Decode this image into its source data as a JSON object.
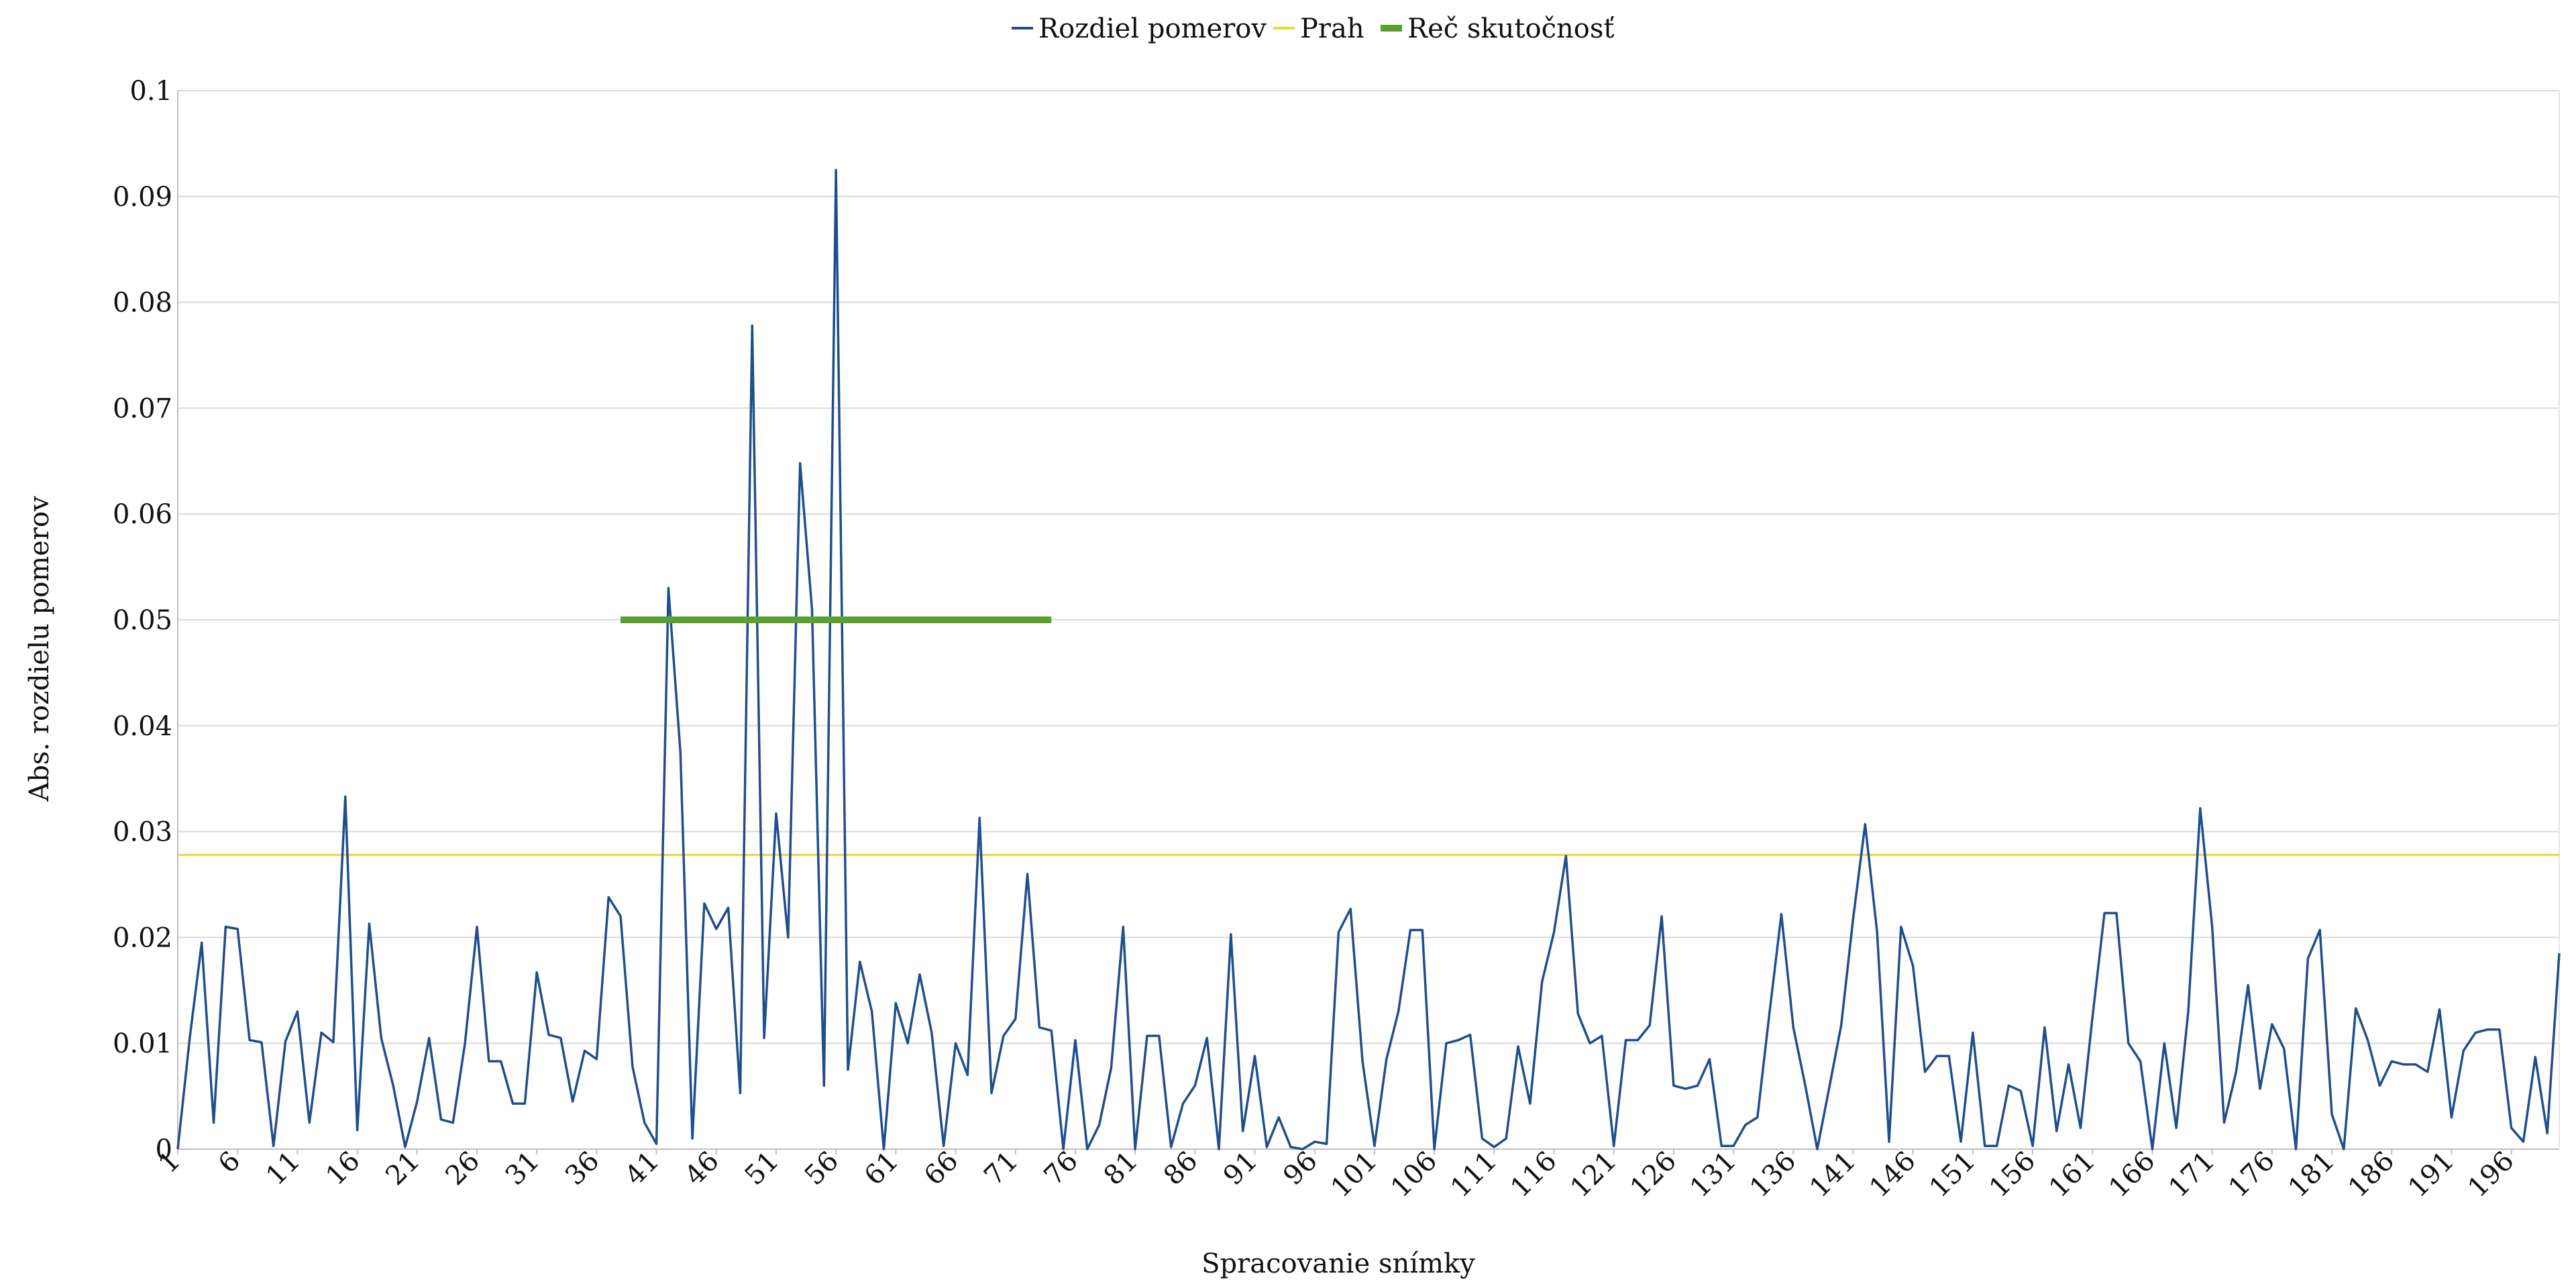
{
  "chart_data": {
    "type": "line",
    "title": "",
    "xlabel": "Spracovanie snímky",
    "ylabel": "Abs. rozdielu pomerov",
    "xlim": [
      1,
      200
    ],
    "ylim": [
      0,
      0.1
    ],
    "y_ticks": [
      0,
      0.01,
      0.02,
      0.03,
      0.04,
      0.05,
      0.06,
      0.07,
      0.08,
      0.09,
      0.1
    ],
    "y_tick_labels": [
      "0",
      "0.01",
      "0.02",
      "0.03",
      "0.04",
      "0.05",
      "0.06",
      "0.07",
      "0.08",
      "0.09",
      "0.1"
    ],
    "x_ticks": [
      1,
      6,
      11,
      16,
      21,
      26,
      31,
      36,
      41,
      46,
      51,
      56,
      61,
      66,
      71,
      76,
      81,
      86,
      91,
      96,
      101,
      106,
      111,
      116,
      121,
      126,
      131,
      136,
      141,
      146,
      151,
      156,
      161,
      166,
      171,
      176,
      181,
      186,
      191,
      196
    ],
    "x_tick_labels": [
      "1",
      "6",
      "11",
      "16",
      "21",
      "26",
      "31",
      "36",
      "41",
      "46",
      "51",
      "56",
      "61",
      "66",
      "71",
      "76",
      "81",
      "86",
      "91",
      "96",
      "101",
      "106",
      "111",
      "116",
      "121",
      "126",
      "131",
      "136",
      "141",
      "146",
      "151",
      "156",
      "161",
      "166",
      "171",
      "176",
      "181",
      "186",
      "191",
      "196"
    ],
    "grid": true,
    "legend_position": "top-center",
    "colors": {
      "series": "#1f4e8c",
      "threshold": "#f2d13f",
      "ground_truth": "#5aa02c",
      "grid": "#d9d9d9",
      "axis": "#bfbfbf"
    },
    "series": [
      {
        "name": "Rozdiel pomerov",
        "x": [
          1,
          2,
          3,
          4,
          5,
          6,
          7,
          8,
          9,
          10,
          11,
          12,
          13,
          14,
          15,
          16,
          17,
          18,
          19,
          20,
          21,
          22,
          23,
          24,
          25,
          26,
          27,
          28,
          29,
          30,
          31,
          32,
          33,
          34,
          35,
          36,
          37,
          38,
          39,
          40,
          41,
          42,
          43,
          44,
          45,
          46,
          47,
          48,
          49,
          50,
          51,
          52,
          53,
          54,
          55,
          56,
          57,
          58,
          59,
          60,
          61,
          62,
          63,
          64,
          65,
          66,
          67,
          68,
          69,
          70,
          71,
          72,
          73,
          74,
          75,
          76,
          77,
          78,
          79,
          80,
          81,
          82,
          83,
          84,
          85,
          86,
          87,
          88,
          89,
          90,
          91,
          92,
          93,
          94,
          95,
          96,
          97,
          98,
          99,
          100,
          101,
          102,
          103,
          104,
          105,
          106,
          107,
          108,
          109,
          110,
          111,
          112,
          113,
          114,
          115,
          116,
          117,
          118,
          119,
          120,
          121,
          122,
          123,
          124,
          125,
          126,
          127,
          128,
          129,
          130,
          131,
          132,
          133,
          134,
          135,
          136,
          137,
          138,
          139,
          140,
          141,
          142,
          143,
          144,
          145,
          146,
          147,
          148,
          149,
          150,
          151,
          152,
          153,
          154,
          155,
          156,
          157,
          158,
          159,
          160,
          161,
          162,
          163,
          164,
          165,
          166,
          167,
          168,
          169,
          170,
          171,
          172,
          173,
          174,
          175,
          176,
          177,
          178,
          179,
          180,
          181,
          182,
          183,
          184,
          185,
          186,
          187,
          188,
          189,
          190,
          191,
          192,
          193,
          194,
          195,
          196,
          197,
          198,
          199,
          200
        ],
        "values": [
          0.0,
          0.0105,
          0.0195,
          0.0025,
          0.021,
          0.0208,
          0.0103,
          0.0101,
          0.0003,
          0.0102,
          0.013,
          0.0025,
          0.011,
          0.0101,
          0.0333,
          0.0018,
          0.0213,
          0.0105,
          0.006,
          0.0002,
          0.0045,
          0.0105,
          0.0028,
          0.0025,
          0.01,
          0.021,
          0.0083,
          0.0083,
          0.0043,
          0.0043,
          0.0167,
          0.0108,
          0.0105,
          0.0045,
          0.0093,
          0.0085,
          0.0238,
          0.022,
          0.0078,
          0.0025,
          0.0005,
          0.053,
          0.0375,
          0.001,
          0.0232,
          0.0208,
          0.0228,
          0.0053,
          0.0778,
          0.0105,
          0.0317,
          0.02,
          0.0648,
          0.051,
          0.006,
          0.0925,
          0.0075,
          0.0177,
          0.013,
          0.0,
          0.0138,
          0.01,
          0.0165,
          0.011,
          0.0003,
          0.01,
          0.007,
          0.0313,
          0.0053,
          0.0107,
          0.0123,
          0.026,
          0.0115,
          0.0112,
          0.0,
          0.0103,
          0.0,
          0.0023,
          0.0077,
          0.021,
          0.0,
          0.0107,
          0.0107,
          0.0002,
          0.0043,
          0.006,
          0.0105,
          0.0,
          0.0203,
          0.0017,
          0.0088,
          0.0002,
          0.003,
          0.0002,
          0.0,
          0.0007,
          0.0005,
          0.0205,
          0.0227,
          0.0083,
          0.0003,
          0.0085,
          0.013,
          0.0207,
          0.0207,
          0.0,
          0.01,
          0.0103,
          0.0108,
          0.001,
          0.0002,
          0.001,
          0.0097,
          0.0043,
          0.0158,
          0.0205,
          0.0277,
          0.0128,
          0.01,
          0.0107,
          0.0003,
          0.0103,
          0.0103,
          0.0117,
          0.022,
          0.006,
          0.0057,
          0.006,
          0.0085,
          0.0003,
          0.0003,
          0.0023,
          0.003,
          0.0128,
          0.0222,
          0.0115,
          0.006,
          0.0,
          0.0058,
          0.0117,
          0.0218,
          0.0307,
          0.0205,
          0.0007,
          0.021,
          0.0173,
          0.0073,
          0.0088,
          0.0088,
          0.0007,
          0.011,
          0.0003,
          0.0003,
          0.006,
          0.0055,
          0.0003,
          0.0115,
          0.0017,
          0.008,
          0.002,
          0.0125,
          0.0223,
          0.0223,
          0.01,
          0.0083,
          0.0,
          0.01,
          0.002,
          0.013,
          0.0322,
          0.021,
          0.0025,
          0.0073,
          0.0155,
          0.0057,
          0.0118,
          0.0095,
          0.0,
          0.018,
          0.0207,
          0.0033,
          0.0,
          0.0133,
          0.0103,
          0.006,
          0.0083,
          0.008,
          0.008,
          0.0073,
          0.0132,
          0.003,
          0.0093,
          0.011,
          0.0113,
          0.0113,
          0.002,
          0.0007,
          0.0087,
          0.0015,
          0.0185
        ]
      },
      {
        "name": "Prah",
        "x": [
          1,
          200
        ],
        "values": [
          0.0278,
          0.0278
        ]
      },
      {
        "name": "Reč skutočnosť",
        "x": [
          38,
          74
        ],
        "values": [
          0.05,
          0.05
        ]
      }
    ]
  }
}
